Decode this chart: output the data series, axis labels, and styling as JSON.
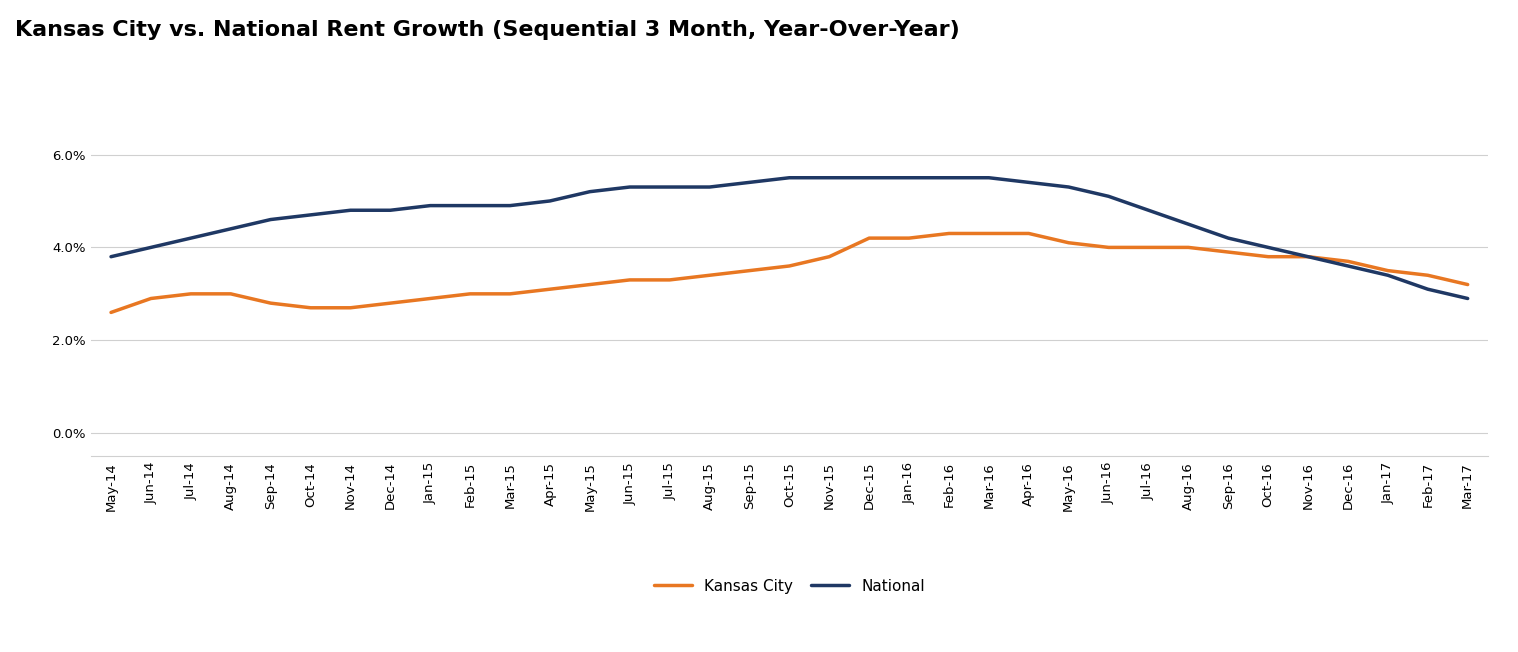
{
  "title": "Kansas City vs. National Rent Growth (Sequential 3 Month, Year-Over-Year)",
  "labels": [
    "May-14",
    "Jun-14",
    "Jul-14",
    "Aug-14",
    "Sep-14",
    "Oct-14",
    "Nov-14",
    "Dec-14",
    "Jan-15",
    "Feb-15",
    "Mar-15",
    "Apr-15",
    "May-15",
    "Jun-15",
    "Jul-15",
    "Aug-15",
    "Sep-15",
    "Oct-15",
    "Nov-15",
    "Dec-15",
    "Jan-16",
    "Feb-16",
    "Mar-16",
    "Apr-16",
    "May-16",
    "Jun-16",
    "Jul-16",
    "Aug-16",
    "Sep-16",
    "Oct-16",
    "Nov-16",
    "Dec-16",
    "Jan-17",
    "Feb-17",
    "Mar-17"
  ],
  "kansas_city": [
    0.026,
    0.029,
    0.03,
    0.03,
    0.028,
    0.027,
    0.027,
    0.028,
    0.029,
    0.03,
    0.03,
    0.031,
    0.032,
    0.033,
    0.033,
    0.034,
    0.035,
    0.036,
    0.038,
    0.042,
    0.042,
    0.043,
    0.043,
    0.043,
    0.041,
    0.04,
    0.04,
    0.04,
    0.039,
    0.038,
    0.038,
    0.037,
    0.035,
    0.034,
    0.032
  ],
  "national": [
    0.038,
    0.04,
    0.042,
    0.044,
    0.046,
    0.047,
    0.048,
    0.048,
    0.049,
    0.049,
    0.049,
    0.05,
    0.052,
    0.053,
    0.053,
    0.053,
    0.054,
    0.055,
    0.055,
    0.055,
    0.055,
    0.055,
    0.055,
    0.054,
    0.053,
    0.051,
    0.048,
    0.045,
    0.042,
    0.04,
    0.038,
    0.036,
    0.034,
    0.031,
    0.029
  ],
  "kansas_city_color": "#E87722",
  "national_color": "#1F3864",
  "line_width": 2.5,
  "background_color": "#ffffff",
  "grid_color": "#d0d0d0",
  "yticks": [
    0.0,
    0.02,
    0.04,
    0.06
  ],
  "ylim": [
    -0.005,
    0.068
  ],
  "title_fontsize": 16,
  "tick_fontsize": 9.5,
  "legend_fontsize": 11
}
